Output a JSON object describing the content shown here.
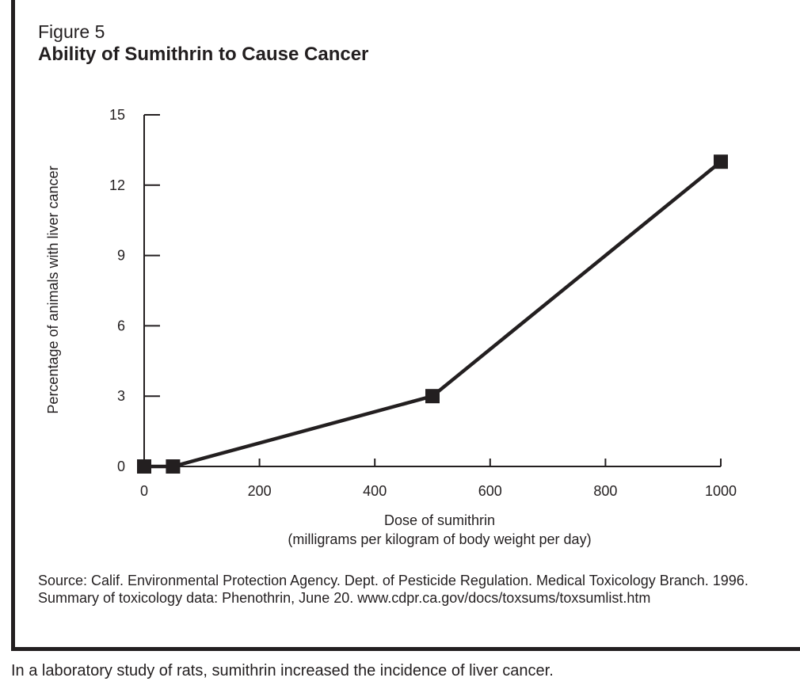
{
  "figure": {
    "label": "Figure 5",
    "title": "Ability of Sumithrin to Cause Cancer"
  },
  "chart_data": {
    "type": "line",
    "title": "Ability of Sumithrin to Cause Cancer",
    "xlabel_line1": "Dose of sumithrin",
    "xlabel_line2": "(milligrams per kilogram of body weight per day)",
    "ylabel": "Percentage of animals with liver cancer",
    "xlim": [
      0,
      1000
    ],
    "ylim": [
      0,
      15
    ],
    "xticks": [
      0,
      200,
      400,
      600,
      800,
      1000
    ],
    "yticks": [
      0,
      3,
      6,
      9,
      12,
      15
    ],
    "grid": false,
    "legend": "none",
    "series": [
      {
        "x": [
          0,
          50,
          500,
          1000
        ],
        "y": [
          0,
          0,
          3,
          13
        ]
      }
    ],
    "color": "#231f20"
  },
  "source_text": "Source: Calif. Environmental Protection Agency. Dept. of Pesticide Regulation. Medical Toxicology Branch. 1996. Summary of toxicology data: Phenothrin, June 20. www.cdpr.ca.gov/docs/toxsums/toxsumlist.htm",
  "caption": "In a laboratory study of rats, sumithrin increased the incidence of liver cancer."
}
